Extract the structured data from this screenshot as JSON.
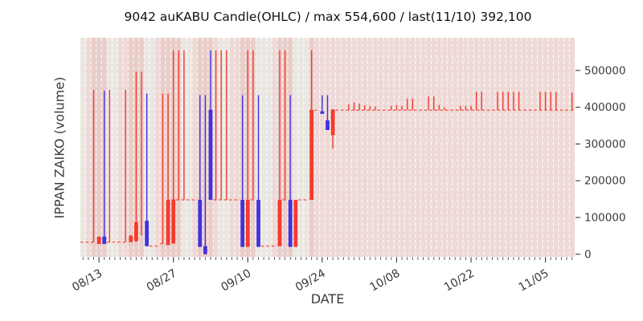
{
  "title": "9042 auKABU Candle(OHLC) / max 554,600 / last(11/10) 392,100",
  "x_label": "DATE",
  "y_label": "IPPAN ZAIKO (volume)",
  "y_axis": {
    "ticks": [
      {
        "label": "0",
        "value": 0
      },
      {
        "label": "100000",
        "value": 100000
      },
      {
        "label": "200000",
        "value": 200000
      },
      {
        "label": "300000",
        "value": 300000
      },
      {
        "label": "400000",
        "value": 400000
      },
      {
        "label": "500000",
        "value": 500000
      }
    ]
  },
  "x_axis": {
    "ticks": [
      {
        "label": "08/13",
        "day_index": 3
      },
      {
        "label": "08/27",
        "day_index": 17
      },
      {
        "label": "09/10",
        "day_index": 31
      },
      {
        "label": "09/24",
        "day_index": 45
      },
      {
        "label": "10/08",
        "day_index": 59
      },
      {
        "label": "10/22",
        "day_index": 73
      },
      {
        "label": "11/05",
        "day_index": 87
      }
    ]
  },
  "chart_data": {
    "type": "candlestick-ohlc",
    "title": "9042 auKABU Candle(OHLC) / max 554,600 / last(11/10) 392,100",
    "max_value": 554600,
    "last_value": 392100,
    "last_date": "11/10",
    "start_date": "08/10",
    "end_date": "11/10",
    "ylim": [
      -7000,
      590000
    ],
    "grid": "vertical-dashed-white-per-day",
    "colors": {
      "red": "#f53b2c",
      "blue": "#4233dd",
      "bg_gray": "#eae7e3",
      "bg_pink": "#eed9d7",
      "bg_pink_dark": "#e8cdc9",
      "grid_line": "rgba(255,255,255,0.88)",
      "tick_text": "#3a3a3a",
      "title_text": "#111111"
    },
    "days": [
      {
        "date": "08/10",
        "bg": "g",
        "flat": 33000
      },
      {
        "date": "08/11",
        "bg": "p",
        "flat": 33000
      },
      {
        "date": "08/12",
        "bg": "d",
        "flat": 33000,
        "wick": [
          33000,
          447000
        ],
        "color": "red"
      },
      {
        "date": "08/13",
        "bg": "d",
        "body": [
          28000,
          48000
        ],
        "color": "red"
      },
      {
        "date": "08/14",
        "bg": "d",
        "body": [
          28000,
          48000
        ],
        "wick": [
          28000,
          445000
        ],
        "color": "blue"
      },
      {
        "date": "08/15",
        "bg": "g",
        "flat": 33000,
        "wick": [
          33000,
          447000
        ],
        "color": "red"
      },
      {
        "date": "08/16",
        "bg": "g",
        "flat": 33000
      },
      {
        "date": "08/17",
        "bg": "p",
        "flat": 33000
      },
      {
        "date": "08/18",
        "bg": "p",
        "flat": 33000,
        "wick": [
          33000,
          447000
        ],
        "color": "red"
      },
      {
        "date": "08/19",
        "bg": "d",
        "body": [
          33000,
          51000
        ],
        "color": "red"
      },
      {
        "date": "08/20",
        "bg": "d",
        "body": [
          36000,
          87000
        ],
        "wick": [
          33000,
          497000
        ],
        "color": "red"
      },
      {
        "date": "08/21",
        "bg": "d",
        "wick": [
          51000,
          497000
        ],
        "color": "red"
      },
      {
        "date": "08/22",
        "bg": "g",
        "body": [
          22000,
          91000
        ],
        "wick": [
          22000,
          437000
        ],
        "color": "blue"
      },
      {
        "date": "08/23",
        "bg": "g",
        "flat": 22000
      },
      {
        "date": "08/24",
        "bg": "p",
        "flat": 22000
      },
      {
        "date": "08/25",
        "bg": "d",
        "flat": 29000,
        "wick": [
          29000,
          437000
        ],
        "color": "red"
      },
      {
        "date": "08/26",
        "bg": "d",
        "body": [
          25000,
          148000
        ],
        "wick": [
          25000,
          437000
        ],
        "color": "red"
      },
      {
        "date": "08/27",
        "bg": "d",
        "body": [
          29000,
          149000
        ],
        "wick": [
          29000,
          554600
        ],
        "color": "red"
      },
      {
        "date": "08/28",
        "bg": "d",
        "flat": 148000,
        "wick": [
          148000,
          554600
        ],
        "color": "red"
      },
      {
        "date": "08/29",
        "bg": "g",
        "flat": 148000,
        "wick": [
          148000,
          554600
        ],
        "color": "red"
      },
      {
        "date": "08/30",
        "bg": "g",
        "flat": 148000
      },
      {
        "date": "08/31",
        "bg": "p",
        "flat": 148000
      },
      {
        "date": "09/01",
        "bg": "d",
        "body": [
          20000,
          148000
        ],
        "wick": [
          20000,
          433000
        ],
        "color": "blue"
      },
      {
        "date": "09/02",
        "bg": "d",
        "body": [
          0,
          22000
        ],
        "wick": [
          0,
          433000
        ],
        "color": "blue"
      },
      {
        "date": "09/03",
        "bg": "d",
        "body": [
          148000,
          393000
        ],
        "wick": [
          148000,
          554600
        ],
        "color": "blue"
      },
      {
        "date": "09/04",
        "bg": "p",
        "flat": 148000,
        "wick": [
          148000,
          554600
        ],
        "color": "red"
      },
      {
        "date": "09/05",
        "bg": "g",
        "flat": 148000,
        "wick": [
          148000,
          554600
        ],
        "color": "red"
      },
      {
        "date": "09/06",
        "bg": "g",
        "flat": 148000,
        "wick": [
          148000,
          554600
        ],
        "color": "red"
      },
      {
        "date": "09/07",
        "bg": "p",
        "flat": 148000
      },
      {
        "date": "09/08",
        "bg": "p",
        "flat": 148000
      },
      {
        "date": "09/09",
        "bg": "d",
        "body": [
          20000,
          148000
        ],
        "wick": [
          20000,
          433000
        ],
        "color": "blue"
      },
      {
        "date": "09/10",
        "bg": "d",
        "body": [
          20000,
          148000
        ],
        "wick": [
          20000,
          554600
        ],
        "color": "red"
      },
      {
        "date": "09/11",
        "bg": "d",
        "flat": 148000,
        "wick": [
          148000,
          554600
        ],
        "color": "red"
      },
      {
        "date": "09/12",
        "bg": "g",
        "body": [
          20000,
          148000
        ],
        "wick": [
          20000,
          433000
        ],
        "color": "blue"
      },
      {
        "date": "09/13",
        "bg": "g",
        "flat": 22000
      },
      {
        "date": "09/14",
        "bg": "g",
        "flat": 22000
      },
      {
        "date": "09/15",
        "bg": "p",
        "flat": 22000
      },
      {
        "date": "09/16",
        "bg": "d",
        "body": [
          22000,
          148000
        ],
        "wick": [
          22000,
          554600
        ],
        "color": "red"
      },
      {
        "date": "09/17",
        "bg": "d",
        "flat": 148000,
        "wick": [
          148000,
          554600
        ],
        "color": "red"
      },
      {
        "date": "09/18",
        "bg": "d",
        "body": [
          20000,
          148000
        ],
        "wick": [
          20000,
          433000
        ],
        "color": "blue"
      },
      {
        "date": "09/19",
        "bg": "g",
        "body": [
          20000,
          148000
        ],
        "color": "red"
      },
      {
        "date": "09/20",
        "bg": "g",
        "flat": 148000
      },
      {
        "date": "09/21",
        "bg": "g",
        "flat": 148000
      },
      {
        "date": "09/22",
        "bg": "d",
        "body": [
          148000,
          393000
        ],
        "wick": [
          148000,
          554600
        ],
        "color": "red"
      },
      {
        "date": "09/23",
        "bg": "p",
        "flat": 392000
      },
      {
        "date": "09/24",
        "bg": "p",
        "body": [
          382000,
          389000
        ],
        "wick": [
          382000,
          433000
        ],
        "color": "blue"
      },
      {
        "date": "09/25",
        "bg": "p",
        "body": [
          338000,
          364000
        ],
        "wick": [
          338000,
          433000
        ],
        "color": "blue"
      },
      {
        "date": "09/26",
        "bg": "p",
        "body": [
          324000,
          394000
        ],
        "wick": [
          287000,
          394000
        ],
        "color": "red"
      },
      {
        "date": "09/27",
        "bg": "p",
        "flat": 392100
      },
      {
        "date": "09/28",
        "bg": "p",
        "flat": 392100
      },
      {
        "date": "09/29",
        "bg": "p",
        "flat": 392100,
        "wick": [
          392100,
          408000
        ],
        "color": "red"
      },
      {
        "date": "09/30",
        "bg": "p",
        "flat": 392100,
        "wick": [
          392100,
          413000
        ],
        "color": "red"
      },
      {
        "date": "10/01",
        "bg": "p",
        "flat": 392100,
        "wick": [
          392100,
          410000
        ],
        "color": "red"
      },
      {
        "date": "10/02",
        "bg": "p",
        "flat": 392100,
        "wick": [
          392100,
          405000
        ],
        "color": "red"
      },
      {
        "date": "10/03",
        "bg": "p",
        "flat": 392100,
        "wick": [
          392100,
          403000
        ],
        "color": "red"
      },
      {
        "date": "10/04",
        "bg": "p",
        "flat": 392100,
        "wick": [
          392100,
          402000
        ],
        "color": "red"
      },
      {
        "date": "10/05",
        "bg": "p",
        "flat": 392100
      },
      {
        "date": "10/06",
        "bg": "p",
        "flat": 392100
      },
      {
        "date": "10/07",
        "bg": "p",
        "flat": 392100,
        "wick": [
          392100,
          404000
        ],
        "color": "red"
      },
      {
        "date": "10/08",
        "bg": "p",
        "flat": 392100,
        "wick": [
          392100,
          406000
        ],
        "color": "red"
      },
      {
        "date": "10/09",
        "bg": "p",
        "flat": 392100,
        "wick": [
          392100,
          404000
        ],
        "color": "red"
      },
      {
        "date": "10/10",
        "bg": "p",
        "flat": 392100,
        "wick": [
          392100,
          424000
        ],
        "color": "red"
      },
      {
        "date": "10/11",
        "bg": "p",
        "flat": 392100,
        "wick": [
          392100,
          424000
        ],
        "color": "red"
      },
      {
        "date": "10/12",
        "bg": "p",
        "flat": 392100
      },
      {
        "date": "10/13",
        "bg": "p",
        "flat": 392100
      },
      {
        "date": "10/14",
        "bg": "p",
        "flat": 392100,
        "wick": [
          392100,
          429000
        ],
        "color": "red"
      },
      {
        "date": "10/15",
        "bg": "p",
        "flat": 392100,
        "wick": [
          392100,
          429000
        ],
        "color": "red"
      },
      {
        "date": "10/16",
        "bg": "p",
        "flat": 392100,
        "wick": [
          392100,
          406000
        ],
        "color": "red"
      },
      {
        "date": "10/17",
        "bg": "p",
        "flat": 392100,
        "wick": [
          392100,
          400000
        ],
        "color": "red"
      },
      {
        "date": "10/18",
        "bg": "p",
        "flat": 392100
      },
      {
        "date": "10/19",
        "bg": "p",
        "flat": 392100
      },
      {
        "date": "10/20",
        "bg": "p",
        "flat": 392100,
        "wick": [
          392100,
          404000
        ],
        "color": "red"
      },
      {
        "date": "10/21",
        "bg": "p",
        "flat": 392100,
        "wick": [
          392100,
          403000
        ],
        "color": "red"
      },
      {
        "date": "10/22",
        "bg": "p",
        "flat": 392100,
        "wick": [
          392100,
          404000
        ],
        "color": "red"
      },
      {
        "date": "10/23",
        "bg": "p",
        "flat": 392100,
        "wick": [
          392100,
          442000
        ],
        "color": "red"
      },
      {
        "date": "10/24",
        "bg": "p",
        "flat": 392100,
        "wick": [
          392100,
          442000
        ],
        "color": "red"
      },
      {
        "date": "10/25",
        "bg": "p",
        "flat": 392100
      },
      {
        "date": "10/26",
        "bg": "p",
        "flat": 392100
      },
      {
        "date": "10/27",
        "bg": "p",
        "flat": 392100,
        "wick": [
          392100,
          442000
        ],
        "color": "red"
      },
      {
        "date": "10/28",
        "bg": "p",
        "flat": 392100,
        "wick": [
          392100,
          442000
        ],
        "color": "red"
      },
      {
        "date": "10/29",
        "bg": "p",
        "flat": 392100,
        "wick": [
          392100,
          442000
        ],
        "color": "red"
      },
      {
        "date": "10/30",
        "bg": "p",
        "flat": 392100,
        "wick": [
          392100,
          442000
        ],
        "color": "red"
      },
      {
        "date": "10/31",
        "bg": "p",
        "flat": 392100,
        "wick": [
          392100,
          442000
        ],
        "color": "red"
      },
      {
        "date": "11/01",
        "bg": "p",
        "flat": 392100
      },
      {
        "date": "11/02",
        "bg": "p",
        "flat": 392100
      },
      {
        "date": "11/03",
        "bg": "p",
        "flat": 392100
      },
      {
        "date": "11/04",
        "bg": "p",
        "flat": 392100,
        "wick": [
          392100,
          442000
        ],
        "color": "red"
      },
      {
        "date": "11/05",
        "bg": "p",
        "flat": 392100,
        "wick": [
          392100,
          442000
        ],
        "color": "red"
      },
      {
        "date": "11/06",
        "bg": "p",
        "flat": 392100,
        "wick": [
          392100,
          442000
        ],
        "color": "red"
      },
      {
        "date": "11/07",
        "bg": "p",
        "flat": 392100,
        "wick": [
          392100,
          442000
        ],
        "color": "red"
      },
      {
        "date": "11/08",
        "bg": "p",
        "flat": 392100
      },
      {
        "date": "11/09",
        "bg": "p",
        "flat": 392100
      },
      {
        "date": "11/10",
        "bg": "p",
        "flat": 392100,
        "wick": [
          392100,
          440000
        ],
        "color": "red"
      }
    ]
  }
}
